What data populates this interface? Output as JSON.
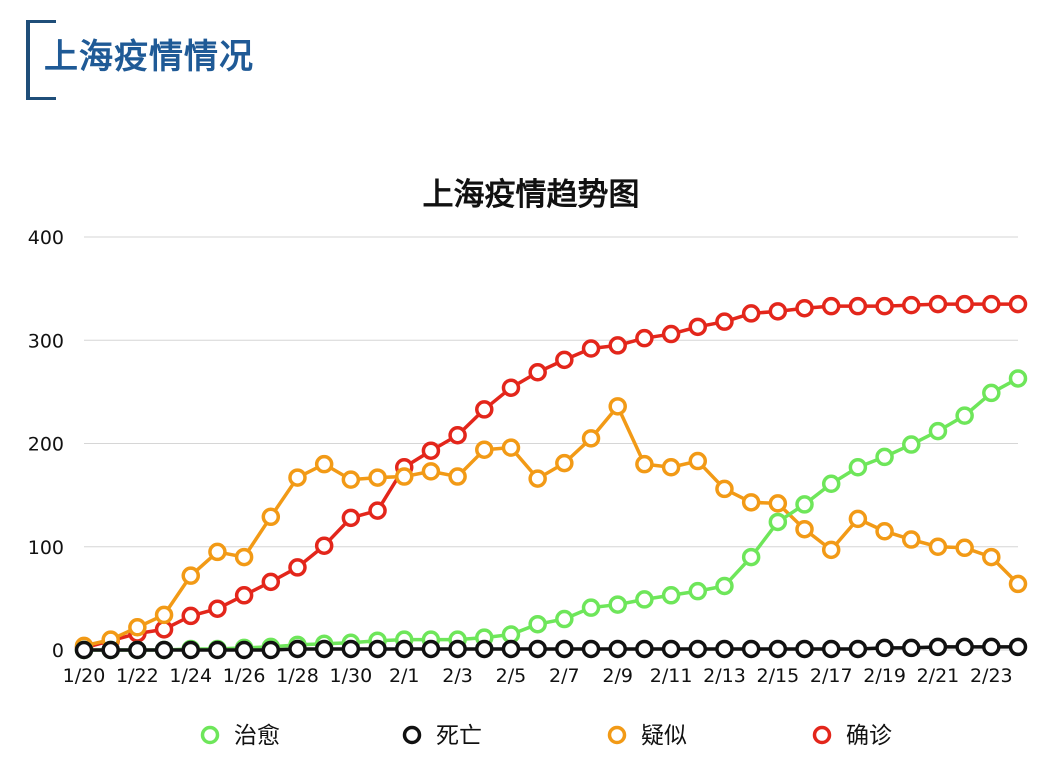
{
  "page": {
    "title": "上海疫情情况"
  },
  "chart_data": {
    "type": "line",
    "title": "上海疫情趋势图",
    "xlabel": "",
    "ylabel": "",
    "ylim": [
      0,
      400
    ],
    "yticks": [
      0,
      100,
      200,
      300,
      400
    ],
    "grid": true,
    "legend_position": "bottom",
    "x": [
      "1/20",
      "1/21",
      "1/22",
      "1/23",
      "1/24",
      "1/25",
      "1/26",
      "1/27",
      "1/28",
      "1/29",
      "1/30",
      "1/31",
      "2/1",
      "2/2",
      "2/3",
      "2/4",
      "2/5",
      "2/6",
      "2/7",
      "2/8",
      "2/9",
      "2/10",
      "2/11",
      "2/12",
      "2/13",
      "2/14",
      "2/15",
      "2/16",
      "2/17",
      "2/18",
      "2/19",
      "2/20",
      "2/21",
      "2/22",
      "2/23",
      "2/24"
    ],
    "x_tick_labels": [
      "1/20",
      "1/22",
      "1/24",
      "1/26",
      "1/28",
      "1/30",
      "2/1",
      "2/3",
      "2/5",
      "2/7",
      "2/9",
      "2/11",
      "2/13",
      "2/15",
      "2/17",
      "2/19",
      "2/21",
      "2/23"
    ],
    "series": [
      {
        "name": "确诊",
        "color": "#e3261b",
        "values": [
          2,
          9,
          16,
          20,
          33,
          40,
          53,
          66,
          80,
          101,
          128,
          135,
          177,
          193,
          208,
          233,
          254,
          269,
          281,
          292,
          295,
          302,
          306,
          313,
          318,
          326,
          328,
          331,
          333,
          333,
          333,
          334,
          335,
          335,
          335,
          335
        ]
      },
      {
        "name": "疑似",
        "color": "#f29a16",
        "values": [
          4,
          10,
          22,
          34,
          72,
          95,
          90,
          129,
          167,
          180,
          165,
          167,
          168,
          173,
          168,
          194,
          196,
          166,
          181,
          205,
          236,
          180,
          177,
          183,
          156,
          143,
          142,
          117,
          97,
          127,
          115,
          107,
          100,
          99,
          90,
          64
        ]
      },
      {
        "name": "治愈",
        "color": "#6ee65a",
        "values": [
          0,
          0,
          0,
          0,
          1,
          1,
          2,
          3,
          5,
          6,
          7,
          9,
          10,
          10,
          10,
          12,
          15,
          25,
          30,
          41,
          44,
          49,
          53,
          57,
          62,
          90,
          124,
          141,
          161,
          177,
          187,
          199,
          212,
          227,
          249,
          263
        ]
      },
      {
        "name": "死亡",
        "color": "#111111",
        "values": [
          0,
          0,
          0,
          0,
          0,
          0,
          0,
          0,
          1,
          1,
          1,
          1,
          1,
          1,
          1,
          1,
          1,
          1,
          1,
          1,
          1,
          1,
          1,
          1,
          1,
          1,
          1,
          1,
          1,
          1,
          2,
          2,
          3,
          3,
          3,
          3
        ]
      }
    ],
    "legend_order": [
      "治愈",
      "死亡",
      "疑似",
      "确诊"
    ]
  }
}
